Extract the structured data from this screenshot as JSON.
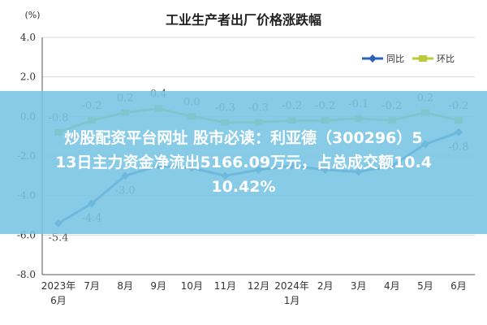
{
  "chart_data": {
    "type": "line",
    "title": "工业生产者出厂价格涨跌幅",
    "unit_label": "(%)",
    "categories": [
      "2023年6月",
      "7月",
      "8月",
      "9月",
      "10月",
      "11月",
      "12月",
      "2024年1月",
      "2月",
      "3月",
      "4月",
      "5月",
      "6月"
    ],
    "x_tick_labels": [
      [
        "2023年",
        "6月"
      ],
      [
        "7月"
      ],
      [
        "8月"
      ],
      [
        "9月"
      ],
      [
        "10月"
      ],
      [
        "11月"
      ],
      [
        "12月"
      ],
      [
        "2024年",
        "1月"
      ],
      [
        "2月"
      ],
      [
        "3月"
      ],
      [
        "4月"
      ],
      [
        "5月"
      ],
      [
        "6月"
      ]
    ],
    "y_ticks": [
      "4.0",
      "2.0",
      "0.0",
      "-2.0",
      "-4.0",
      "-6.0",
      "-8.0"
    ],
    "ylim": [
      -8,
      4
    ],
    "grid": true,
    "legend_position": "top-right",
    "series": [
      {
        "name": "同比",
        "color": "#2e64b8",
        "values": [
          -5.4,
          -4.4,
          -3.0,
          -2.5,
          -2.6,
          -3.0,
          -2.7,
          -2.5,
          -2.7,
          -2.8,
          -2.5,
          -1.4,
          -0.8
        ],
        "labels": [
          "-5.4",
          "-4.4",
          "-3.0",
          "",
          "",
          "",
          "",
          "",
          "",
          "",
          "",
          "",
          "-0.8"
        ]
      },
      {
        "name": "环比",
        "color": "#b8cc3c",
        "values": [
          -0.8,
          -0.2,
          0.2,
          0.4,
          0.0,
          -0.3,
          -0.3,
          -0.2,
          -0.2,
          -0.1,
          -0.2,
          0.2,
          -0.2
        ],
        "labels": [
          "-0.8",
          "-0.2",
          "0.2",
          "0.4",
          "0.0",
          "-0.3",
          "-0.3",
          "-0.2",
          "-0.2",
          "-0.1",
          "-0.2",
          "0.2",
          "-0.2"
        ]
      }
    ]
  },
  "overlay": {
    "line1": "炒股配资平台网址 股市必读：利亚德（300296）5",
    "line2": "13日主力资金净流出5166.09万元，占总成交额10.4",
    "line3": "10.42%"
  }
}
